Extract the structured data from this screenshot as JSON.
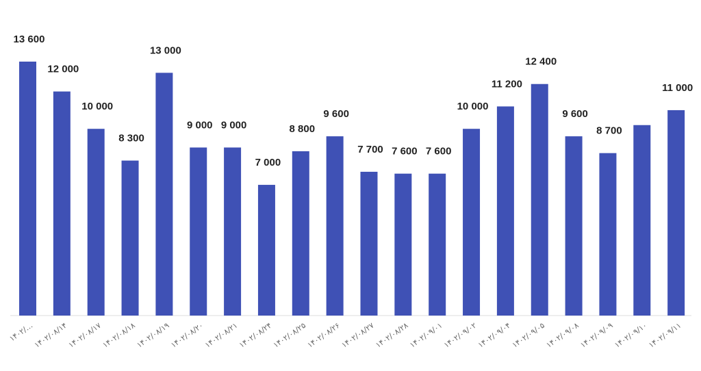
{
  "chart_data": {
    "type": "bar",
    "title": "",
    "xlabel": "",
    "ylabel": "",
    "ylim": [
      0,
      13600
    ],
    "grid": false,
    "bar_color": "#3f51b5",
    "categories": [
      "۱۴۰۲/…",
      "۱۴۰۲/۰۸/۱۴",
      "۱۴۰۲/۰۸/۱۷",
      "۱۴۰۲/۰۸/۱۸",
      "۱۴۰۲/۰۸/۱۹",
      "۱۴۰۲/۰۸/۲۰",
      "۱۴۰۲/۰۸/۲۱",
      "۱۴۰۲/۰۸/۲۴",
      "۱۴۰۲/۰۸/۲۵",
      "۱۴۰۲/۰۸/۲۶",
      "۱۴۰۲/۰۸/۲۷",
      "۱۴۰۲/۰۸/۲۸",
      "۱۴۰۲/۰۹/۰۱",
      "۱۴۰۲/۰۹/۰۲",
      "۱۴۰۲/۰۹/۰۴",
      "۱۴۰۲/۰۹/۰۵",
      "۱۴۰۲/۰۹/۰۸",
      "۱۴۰۲/۰۹/۰۹",
      "۱۴۰۲/۰۹/۱۰",
      "۱۴۰۲/۰۹/۱۱"
    ],
    "values": [
      13600,
      12000,
      10000,
      8300,
      13000,
      9000,
      9000,
      7000,
      8800,
      9600,
      7700,
      7600,
      7600,
      10000,
      11200,
      12400,
      9600,
      8700,
      10200,
      11000
    ],
    "data_labels": [
      "13 600",
      "12 000",
      "10 000",
      "8 300",
      "13 000",
      "9 000",
      "9 000",
      "7 000",
      "8 800",
      "9 600",
      "7 700",
      "7 600",
      "7 600",
      "10 000",
      "11 200",
      "12 400",
      "9 600",
      "8 700",
      "",
      "11 000"
    ]
  }
}
